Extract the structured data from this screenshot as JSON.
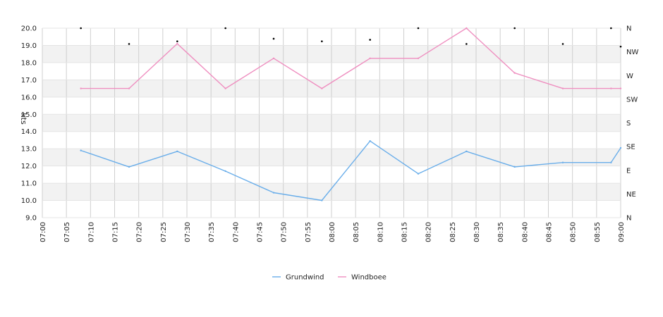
{
  "chart_data": {
    "type": "line",
    "ylabel": "kts",
    "ylim": [
      9.0,
      20.0
    ],
    "y_ticks": [
      "9.0",
      "10.0",
      "11.0",
      "12.0",
      "13.0",
      "14.0",
      "15.0",
      "16.0",
      "17.0",
      "18.0",
      "19.0",
      "20.0"
    ],
    "x_tick_labels": [
      "07:00",
      "07:05",
      "07:10",
      "07:15",
      "07:20",
      "07:25",
      "07:30",
      "07:35",
      "07:40",
      "07:45",
      "07:50",
      "07:55",
      "08:00",
      "08:05",
      "08:10",
      "08:15",
      "08:20",
      "08:25",
      "08:30",
      "08:35",
      "08:40",
      "08:45",
      "08:50",
      "08:55",
      "09:00"
    ],
    "x_range": [
      "07:00",
      "09:00"
    ],
    "y2_tick_labels": [
      "N",
      "NE",
      "E",
      "SE",
      "S",
      "SW",
      "W",
      "NW",
      "N"
    ],
    "grid": true,
    "legend_position": "bottom-center",
    "series": [
      {
        "name": "Grundwind",
        "color": "#6aaeea",
        "x": [
          "07:08",
          "07:18",
          "07:28",
          "07:38",
          "07:48",
          "07:58",
          "08:08",
          "08:18",
          "08:28",
          "08:38",
          "08:48",
          "08:58",
          "09:00"
        ],
        "values": [
          12.9,
          11.95,
          12.85,
          11.7,
          10.45,
          10.0,
          13.45,
          11.55,
          12.85,
          11.95,
          12.2,
          12.2,
          13.05
        ]
      },
      {
        "name": "Windboee",
        "color": "#ef8fc0",
        "x": [
          "07:08",
          "07:18",
          "07:28",
          "07:38",
          "07:48",
          "07:58",
          "08:08",
          "08:18",
          "08:28",
          "08:38",
          "08:48",
          "08:58",
          "09:00"
        ],
        "values": [
          16.5,
          16.5,
          19.1,
          16.5,
          18.25,
          16.5,
          18.25,
          18.25,
          20.0,
          17.4,
          16.5,
          16.5,
          16.5
        ]
      }
    ],
    "direction_markers": {
      "x": [
        "07:08",
        "07:18",
        "07:28",
        "07:38",
        "07:48",
        "07:58",
        "08:08",
        "08:18",
        "08:28",
        "08:38",
        "08:48",
        "08:58",
        "09:00"
      ],
      "direction_deg": [
        360,
        330,
        335,
        360,
        340,
        335,
        338,
        360,
        330,
        360,
        330,
        360,
        325
      ]
    }
  }
}
